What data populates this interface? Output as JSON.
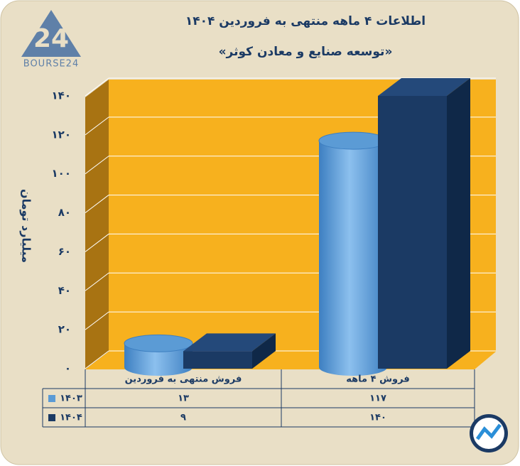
{
  "logo": "BOURSE24",
  "chart_data": {
    "type": "bar3d",
    "title": "اطلاعات ۴ ماهه منتهی به فروردین ۱۴۰۴",
    "subtitle": "«توسعه صنایع و معادن کوثر»",
    "y_label": "میلیارد تومان",
    "categories": [
      "فروش منتهی به فروردین",
      "فروش ۴ ماهه"
    ],
    "series": [
      {
        "name": "۱۴۰۳",
        "color": "#5b9bd5",
        "shape": "cylinder",
        "values": [
          13,
          117
        ],
        "value_labels": [
          "۱۳",
          "۱۱۷"
        ]
      },
      {
        "name": "۱۴۰۴",
        "color": "#1b3a64",
        "shape": "box",
        "values": [
          9,
          140
        ],
        "value_labels": [
          "۹",
          "۱۴۰"
        ]
      }
    ],
    "ylim": [
      0,
      140
    ],
    "yticks": [
      {
        "value": 0,
        "label": "۰"
      },
      {
        "value": 20,
        "label": "۲۰"
      },
      {
        "value": 40,
        "label": "۴۰"
      },
      {
        "value": 60,
        "label": "۶۰"
      },
      {
        "value": 80,
        "label": "۸۰"
      },
      {
        "value": 100,
        "label": "۱۰۰"
      },
      {
        "value": 120,
        "label": "۱۲۰"
      },
      {
        "value": 140,
        "label": "۱۴۰"
      }
    ],
    "grid": true
  }
}
